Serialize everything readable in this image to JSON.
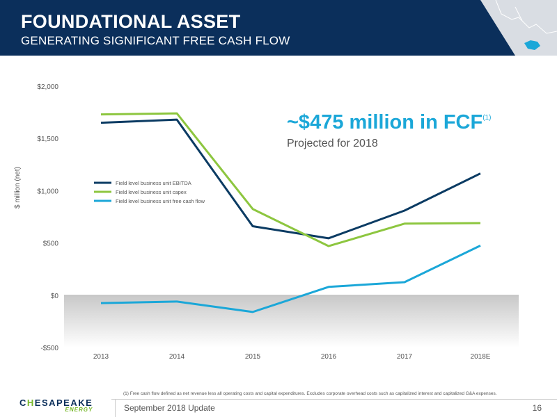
{
  "header": {
    "title": "FOUNDATIONAL ASSET",
    "subtitle": "GENERATING SIGNIFICANT FREE CASH FLOW"
  },
  "callout": {
    "main": "~$475 million in FCF",
    "superscript": "(1)",
    "sub": "Projected for 2018"
  },
  "footnote": "(1)  Free cash flow defined as net revenue less all operating costs and capital expenditures. Excludes corporate overhead costs such as capitalized interest and capitalized G&A expenses.",
  "footer": {
    "text": "September 2018 Update",
    "page_number": "16"
  },
  "logo": {
    "main_pre": "C",
    "main_accent": "H",
    "main_post": "ESAPEAKE",
    "sub": "ENERGY"
  },
  "colors": {
    "header_bg": "#0b2f5b",
    "ebitda": "#0b3b63",
    "capex": "#8dc63f",
    "fcf": "#1ba7d8"
  },
  "chart_data": {
    "type": "line",
    "categories": [
      "2013",
      "2014",
      "2015",
      "2016",
      "2017",
      "2018E"
    ],
    "ylabel": "$ million (net)",
    "ylim": [
      -500,
      2000
    ],
    "yticks": [
      -500,
      0,
      500,
      1000,
      1500,
      2000
    ],
    "ytick_labels": [
      "-$500",
      "$0",
      "$500",
      "$1,000",
      "$1,500",
      "$2,000"
    ],
    "grid": false,
    "legend_position": "left",
    "negative_region_shaded": true,
    "series": [
      {
        "name": "Field level business unit EBITDA",
        "color": "#0b3b63",
        "values": [
          1650,
          1680,
          660,
          545,
          810,
          1165
        ]
      },
      {
        "name": "Field level business unit capex",
        "color": "#8dc63f",
        "values": [
          1730,
          1740,
          825,
          470,
          685,
          690
        ]
      },
      {
        "name": "Field level business unit free cash flow",
        "color": "#1ba7d8",
        "values": [
          -75,
          -60,
          -160,
          80,
          125,
          475
        ]
      }
    ]
  }
}
